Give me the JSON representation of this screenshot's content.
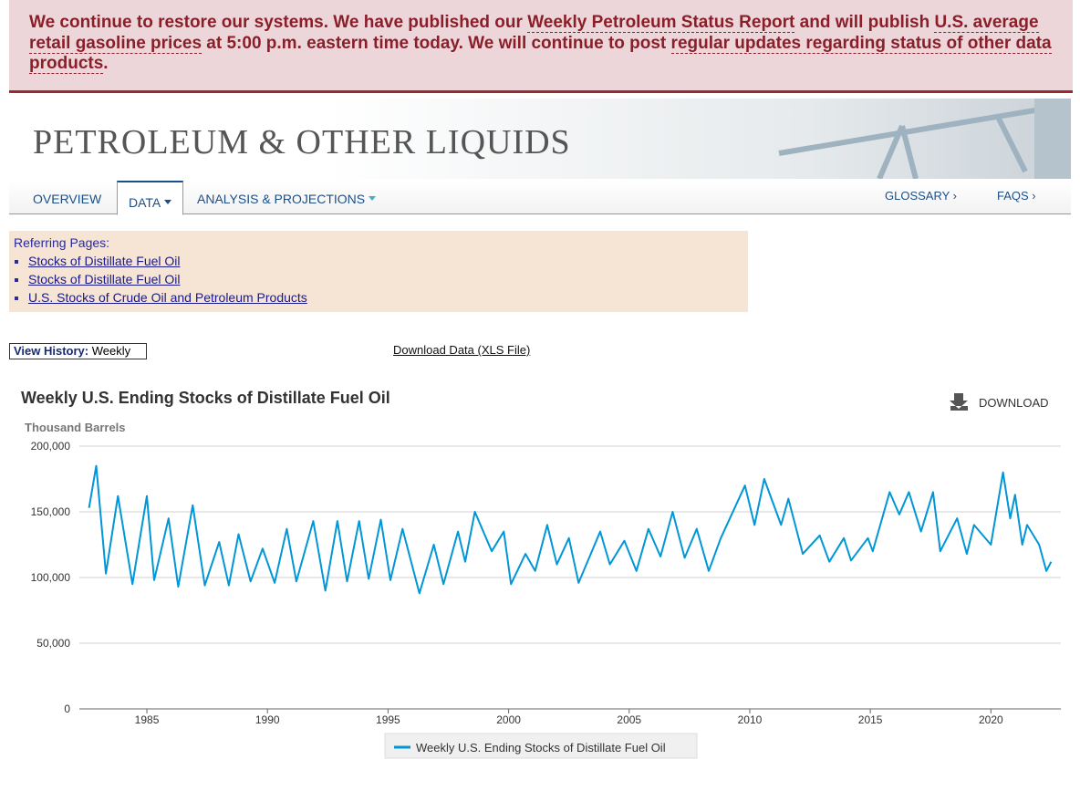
{
  "banner": {
    "parts": [
      "We continue to restore our systems. We have published our ",
      "Weekly Petroleum Status Report",
      " and will publish ",
      "U.S. average retail gasoline prices",
      " at 5:00 p.m. eastern time today. We will continue to post ",
      "regular updates regarding status of other data products",
      "."
    ]
  },
  "header": {
    "title": "PETROLEUM & OTHER LIQUIDS"
  },
  "nav": {
    "left": [
      "OVERVIEW",
      "DATA",
      "ANALYSIS & PROJECTIONS"
    ],
    "right": [
      "GLOSSARY ›",
      "FAQS ›"
    ]
  },
  "referring": {
    "title": "Referring Pages:",
    "links": [
      "Stocks of Distillate Fuel Oil",
      "Stocks of Distillate Fuel Oil",
      "U.S. Stocks of Crude Oil and Petroleum Products"
    ]
  },
  "history": {
    "label": "View History:",
    "value": "Weekly",
    "download": "Download Data (XLS File)"
  },
  "chart_data": {
    "type": "line",
    "title": "Weekly U.S. Ending Stocks of Distillate Fuel Oil",
    "download": "DOWNLOAD",
    "y_label": "Thousand Barrels",
    "x": [
      1982.6,
      1982.9,
      1983.3,
      1983.8,
      1984.4,
      1985.0,
      1985.3,
      1985.9,
      1986.3,
      1986.9,
      1987.4,
      1988.0,
      1988.4,
      1988.8,
      1989.3,
      1989.8,
      1990.3,
      1990.8,
      1991.2,
      1991.9,
      1992.4,
      1992.9,
      1993.3,
      1993.8,
      1994.2,
      1994.7,
      1995.1,
      1995.6,
      1996.3,
      1996.9,
      1997.3,
      1997.9,
      1998.2,
      1998.6,
      1999.3,
      1999.8,
      2000.1,
      2000.7,
      2001.1,
      2001.6,
      2002.0,
      2002.5,
      2002.9,
      2003.8,
      2004.2,
      2004.8,
      2005.3,
      2005.8,
      2006.3,
      2006.8,
      2007.3,
      2007.8,
      2008.3,
      2008.8,
      2009.8,
      2010.2,
      2010.6,
      2011.3,
      2011.6,
      2012.2,
      2012.9,
      2013.3,
      2013.9,
      2014.2,
      2014.9,
      2015.1,
      2015.8,
      2016.2,
      2016.6,
      2017.1,
      2017.6,
      2017.9,
      2018.6,
      2019.0,
      2019.3,
      2020.0,
      2020.5,
      2020.8,
      2021.0,
      2021.3,
      2021.5,
      2022.0,
      2022.3,
      2022.5
    ],
    "series": [
      {
        "name": "Weekly U.S. Ending Stocks of Distillate Fuel Oil",
        "color": "#0096d7",
        "values": [
          153000,
          185000,
          103000,
          162000,
          95000,
          162000,
          98000,
          145000,
          93000,
          155000,
          94000,
          127000,
          94000,
          133000,
          97000,
          122000,
          96000,
          137000,
          97000,
          143000,
          90000,
          143000,
          97000,
          143000,
          99000,
          144000,
          98000,
          137000,
          88000,
          125000,
          95000,
          135000,
          112000,
          150000,
          120000,
          135000,
          95000,
          118000,
          105000,
          140000,
          110000,
          130000,
          96000,
          135000,
          110000,
          128000,
          105000,
          137000,
          116000,
          150000,
          115000,
          137000,
          105000,
          130000,
          170000,
          140000,
          175000,
          140000,
          160000,
          118000,
          132000,
          112000,
          130000,
          113000,
          130000,
          120000,
          165000,
          148000,
          165000,
          135000,
          165000,
          120000,
          145000,
          118000,
          140000,
          125000,
          180000,
          145000,
          163000,
          125000,
          140000,
          125000,
          105000,
          112000
        ]
      }
    ],
    "xlim": [
      1982.2,
      2022.9
    ],
    "xticks": [
      1985,
      1990,
      1995,
      2000,
      2005,
      2010,
      2015,
      2020
    ],
    "ylim": [
      0,
      200000
    ],
    "yticks": [
      0,
      {
        "value": 50000,
        "label": "50,000"
      },
      {
        "value": 100000,
        "label": "100,000"
      },
      {
        "value": 150000,
        "label": "150,000"
      },
      {
        "value": 200000,
        "label": "200,000"
      }
    ],
    "grid": true
  }
}
